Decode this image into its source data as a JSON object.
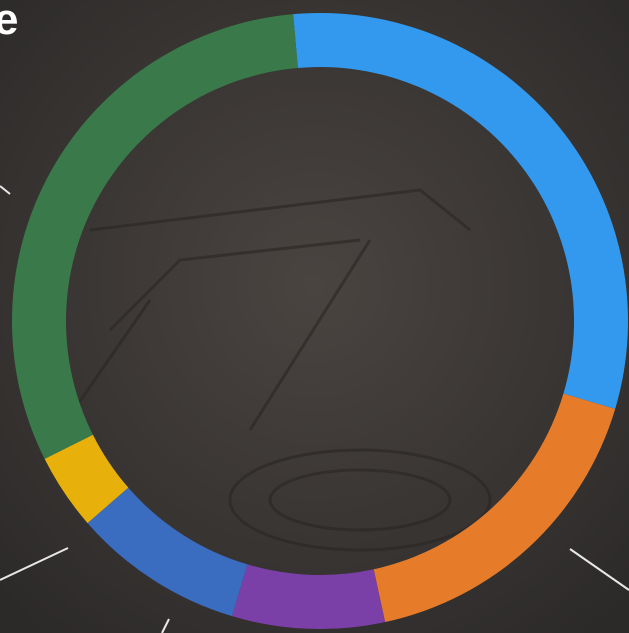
{
  "chart_data": {
    "type": "donut",
    "title": "e",
    "values": [
      31,
      17,
      8,
      9,
      4,
      31
    ],
    "colors": [
      "#3399ee",
      "#e67c2a",
      "#7b3fa8",
      "#3a6cc0",
      "#e8b00a",
      "#3a7a4a"
    ]
  }
}
